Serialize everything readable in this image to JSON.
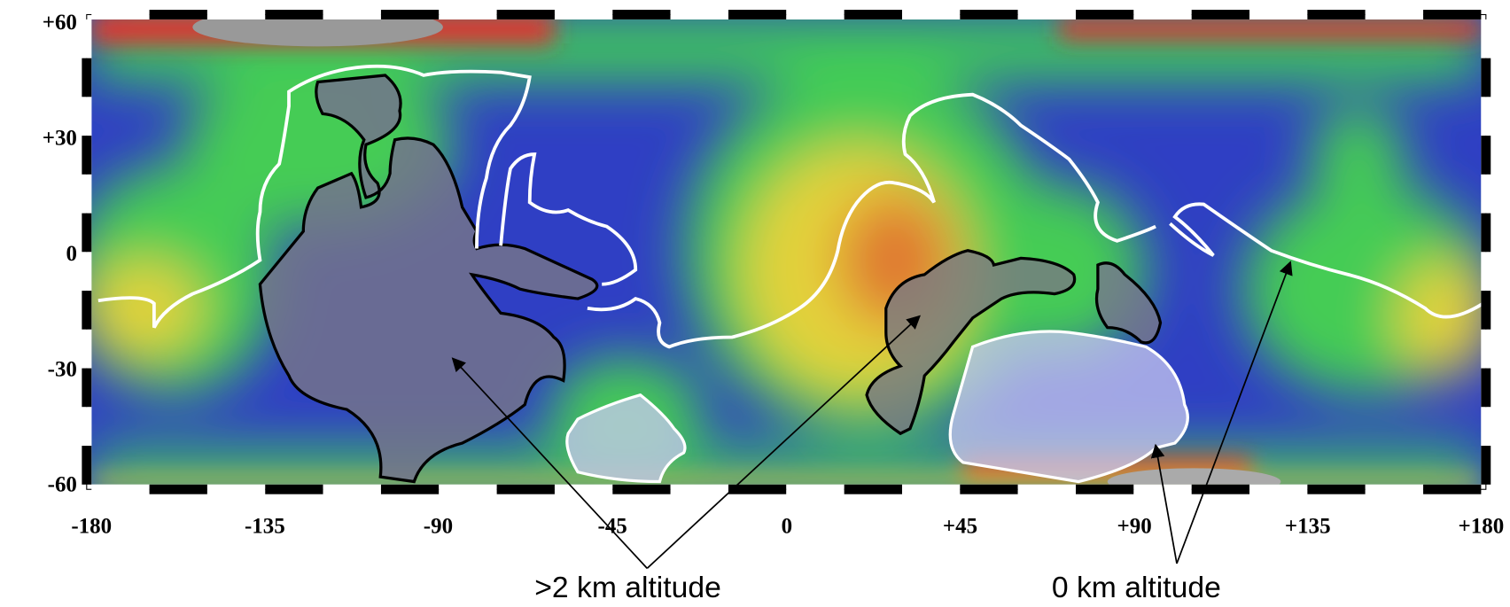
{
  "map": {
    "y_axis_labels": [
      "+60",
      "+30",
      "0",
      "-30",
      "-60"
    ],
    "x_axis_labels": [
      "-180",
      "-135",
      "-90",
      "-45",
      "0",
      "+45",
      "+90",
      "+135",
      "+180"
    ],
    "annotations": [
      ">2 km altitude",
      "0 km altitude"
    ]
  }
}
